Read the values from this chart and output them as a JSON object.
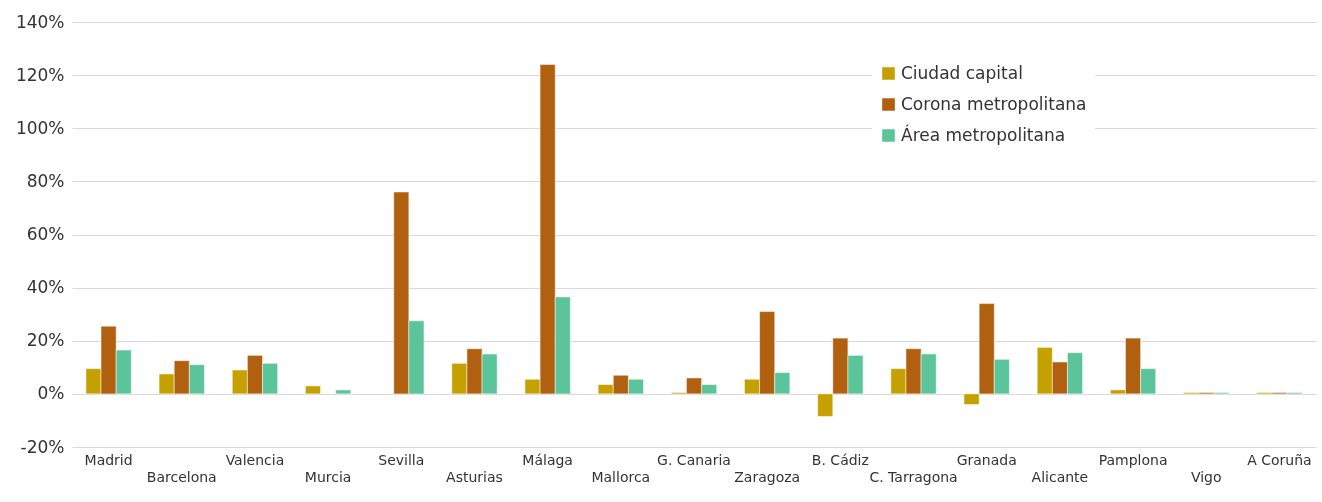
{
  "chart_data": {
    "type": "bar",
    "categories": [
      "Madrid",
      "Barcelona",
      "Valencia",
      "Murcia",
      "Sevilla",
      "Asturias",
      "Málaga",
      "Mallorca",
      "G. Canaria",
      "Zaragoza",
      "B. Cádiz",
      "C. Tarragona",
      "Granada",
      "Alicante",
      "Pamplona",
      "Vigo",
      "A Coruña"
    ],
    "series": [
      {
        "name": "Ciudad capital",
        "color": "#c5a100",
        "values": [
          9.5,
          7.5,
          9,
          3,
          null,
          11.5,
          5.5,
          3.5,
          0.5,
          5.5,
          -8.5,
          9.5,
          -4,
          17.5,
          1.5,
          0.5,
          0.5
        ]
      },
      {
        "name": "Corona metropolitana",
        "color": "#b0600f",
        "values": [
          25.5,
          12.5,
          14.5,
          null,
          76,
          17,
          124,
          7,
          6,
          31,
          21,
          17,
          34,
          12,
          21,
          0.5,
          0.5
        ]
      },
      {
        "name": "Área metropolitana",
        "color": "#5bc49a",
        "values": [
          16.5,
          11,
          11.5,
          1.5,
          27.5,
          15,
          36.5,
          5.5,
          3.5,
          8,
          14.5,
          15,
          13,
          15.5,
          9.5,
          0.5,
          0.5
        ]
      }
    ],
    "ylim": [
      -20,
      140
    ],
    "yticks": [
      {
        "value": -20,
        "label": "-20%"
      },
      {
        "value": 0,
        "label": "0%"
      },
      {
        "value": 20,
        "label": "20%"
      },
      {
        "value": 40,
        "label": "40%"
      },
      {
        "value": 60,
        "label": "60%"
      },
      {
        "value": 80,
        "label": "80%"
      },
      {
        "value": 100,
        "label": "100%"
      },
      {
        "value": 120,
        "label": "120%"
      },
      {
        "value": 140,
        "label": "140%"
      }
    ],
    "grid": "y",
    "legend": "top right"
  }
}
